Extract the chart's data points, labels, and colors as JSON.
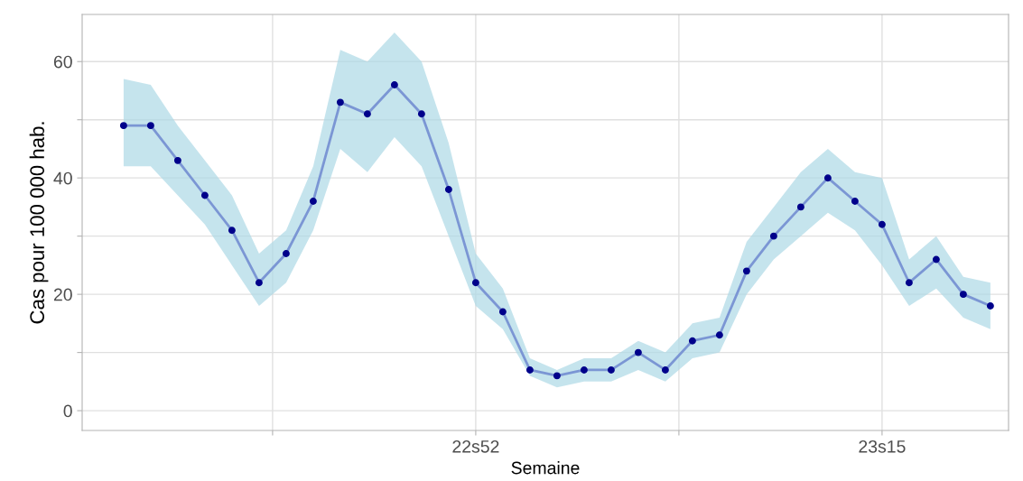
{
  "chart_data": {
    "type": "line",
    "xlabel": "Semaine",
    "ylabel": "Cas pour 100 000 hab.",
    "categories": [
      null,
      null,
      null,
      null,
      null,
      null,
      null,
      null,
      null,
      null,
      null,
      null,
      null,
      "22s52",
      null,
      null,
      null,
      null,
      null,
      null,
      null,
      null,
      null,
      null,
      null,
      null,
      null,
      null,
      "23s15",
      null,
      null,
      null,
      null
    ],
    "series": [
      {
        "color": "#7b96d4",
        "values": [
          49,
          49,
          43,
          37,
          31,
          22,
          27,
          36,
          53,
          51,
          56,
          51,
          38,
          22,
          17,
          7,
          6,
          7,
          7,
          10,
          7,
          12,
          13,
          24,
          30,
          35,
          40,
          36,
          32,
          22,
          26,
          20,
          18
        ],
        "lower": [
          42,
          42,
          37,
          32,
          25,
          18,
          22,
          31,
          45,
          41,
          47,
          42,
          30,
          18,
          14,
          6,
          4,
          5,
          5,
          7,
          5,
          9,
          10,
          20,
          26,
          30,
          34,
          31,
          25,
          18,
          21,
          16,
          14
        ],
        "upper": [
          57,
          56,
          49,
          43,
          37,
          27,
          31,
          42,
          62,
          60,
          65,
          60,
          46,
          27,
          21,
          9,
          7,
          9,
          9,
          12,
          10,
          15,
          16,
          29,
          35,
          41,
          45,
          41,
          40,
          26,
          30,
          23,
          22
        ]
      },
      {
        "type": "scatter",
        "color": "#00008b",
        "marker": "circle",
        "values": [
          49,
          49,
          43,
          37,
          31,
          22,
          27,
          36,
          53,
          51,
          56,
          51,
          38,
          22,
          17,
          7,
          6,
          7,
          7,
          10,
          7,
          12,
          13,
          24,
          30,
          35,
          40,
          36,
          32,
          22,
          26,
          20,
          18
        ]
      }
    ],
    "ylim": [
      -3.4,
      68.1
    ],
    "yticks": [
      0,
      {
        "value": 10,
        "label": null
      },
      20,
      {
        "value": 30,
        "label": null
      },
      40,
      {
        "value": 50,
        "label": null
      },
      60
    ],
    "grid": true
  }
}
